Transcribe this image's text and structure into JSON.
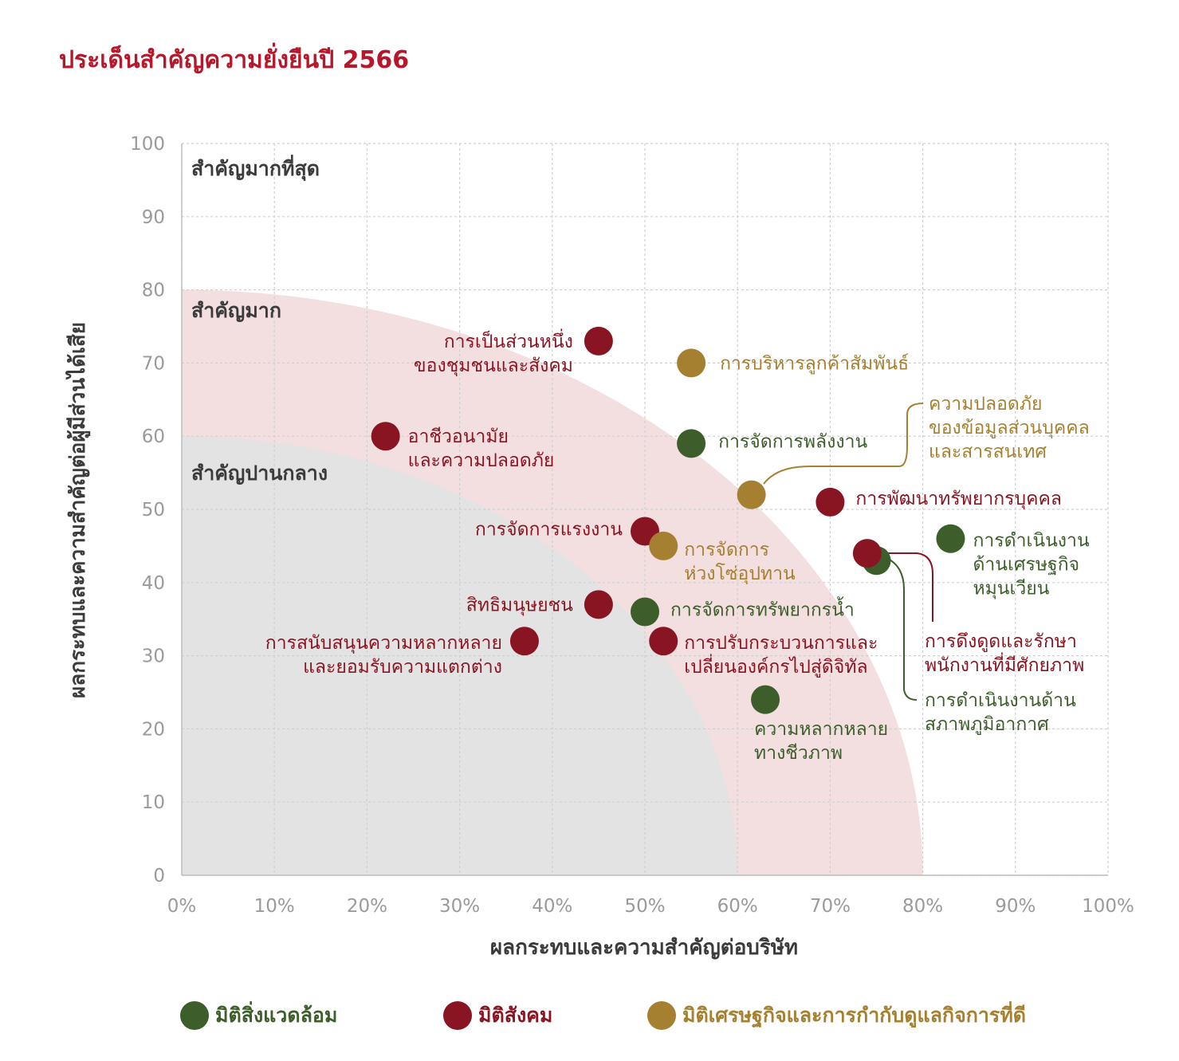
{
  "title": "ประเด็นสำคัญความยั่งยืนปี 2566",
  "colors": {
    "title": "#b5172b",
    "environment": "#3d5e2a",
    "social": "#8a1522",
    "economic": "#a58031",
    "zone_high": "#f3dfe0",
    "zone_mid": "#e3e3e3"
  },
  "chart_data": {
    "type": "scatter",
    "title": "",
    "xlabel": "ผลกระทบและความสำคัญต่อบริษัท",
    "ylabel": "ผลกระทบและความสำคัญต่อผู้มีส่วนได้เสีย",
    "xlim": [
      0,
      100
    ],
    "ylim": [
      0,
      100
    ],
    "x_ticks": [
      "0%",
      "10%",
      "20%",
      "30%",
      "40%",
      "50%",
      "60%",
      "70%",
      "80%",
      "90%",
      "100%"
    ],
    "y_ticks": [
      "0",
      "10",
      "20",
      "30",
      "40",
      "50",
      "60",
      "70",
      "80",
      "90",
      "100"
    ],
    "grid": true,
    "legend_position": "bottom",
    "zones": [
      {
        "label": "สำคัญมากที่สุด",
        "radius": 100
      },
      {
        "label": "สำคัญมาก",
        "radius": 80
      },
      {
        "label": "สำคัญปานกลาง",
        "radius": 60
      }
    ],
    "series": [
      {
        "name": "มิติสิ่งแวดล้อม",
        "key": "environment"
      },
      {
        "name": "มิติสังคม",
        "key": "social"
      },
      {
        "name": "มิติเศรษฐกิจและการกำกับดูแลกิจการที่ดี",
        "key": "economic"
      }
    ],
    "points": [
      {
        "series": "social",
        "x": 45,
        "y": 73,
        "label": [
          "การเป็นส่วนหนึ่ง",
          "ของชุมชนและสังคม"
        ]
      },
      {
        "series": "economic",
        "x": 55,
        "y": 70,
        "label": [
          "การบริหารลูกค้าสัมพันธ์"
        ]
      },
      {
        "series": "social",
        "x": 22,
        "y": 60,
        "label": [
          "อาชีวอนามัย",
          "และความปลอดภัย"
        ]
      },
      {
        "series": "environment",
        "x": 55,
        "y": 59,
        "label": [
          "การจัดการพลังงาน"
        ]
      },
      {
        "series": "economic",
        "x": 61.5,
        "y": 52,
        "label": [
          "ความปลอดภัย",
          "ของข้อมูลส่วนบุคคล",
          "และสารสนเทศ"
        ]
      },
      {
        "series": "social",
        "x": 70,
        "y": 51,
        "label": [
          "การพัฒนาทรัพยากรบุคคล"
        ]
      },
      {
        "series": "social",
        "x": 50,
        "y": 47,
        "label": [
          "การจัดการแรงงาน"
        ]
      },
      {
        "series": "economic",
        "x": 52,
        "y": 45,
        "label": [
          "การจัดการ",
          "ห่วงโซ่อุปทาน"
        ]
      },
      {
        "series": "environment",
        "x": 83,
        "y": 46,
        "label": [
          "การดำเนินงาน",
          "ด้านเศรษฐกิจ",
          "หมุนเวียน"
        ]
      },
      {
        "series": "environment",
        "x": 75,
        "y": 43,
        "label": [
          "การดำเนินงานด้าน",
          "สภาพภูมิอากาศ"
        ]
      },
      {
        "series": "social",
        "x": 74,
        "y": 44,
        "label": [
          "การดึงดูดและรักษา",
          "พนักงานที่มีศักยภาพ"
        ]
      },
      {
        "series": "social",
        "x": 45,
        "y": 37,
        "label": [
          "สิทธิมนุษยชน"
        ]
      },
      {
        "series": "environment",
        "x": 50,
        "y": 36,
        "label": [
          "การจัดการทรัพยากรน้ำ"
        ]
      },
      {
        "series": "social",
        "x": 37,
        "y": 32,
        "label": [
          "การสนับสนุนความหลากหลาย",
          "และยอมรับความแตกต่าง"
        ]
      },
      {
        "series": "social",
        "x": 52,
        "y": 32,
        "label": [
          "การปรับกระบวนการและ",
          "เปลี่ยนองค์กรไปสู่ดิจิทัล"
        ]
      },
      {
        "series": "environment",
        "x": 63,
        "y": 24,
        "label": [
          "ความหลากหลาย",
          "ทางชีวภาพ"
        ]
      }
    ]
  }
}
